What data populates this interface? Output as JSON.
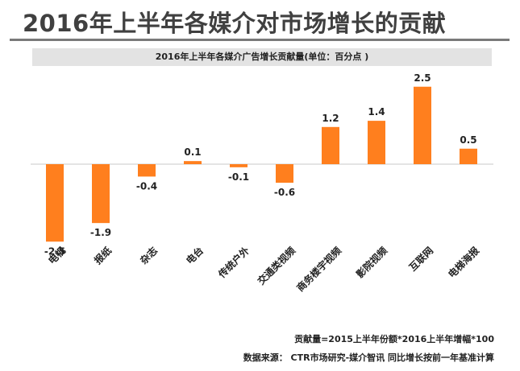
{
  "header": {
    "title": "2016年上半年各媒介对市场增长的贡献"
  },
  "chart_data": {
    "type": "bar",
    "title": "2016年上半年各媒介广告增长贡献量(单位：百分点 )",
    "categories": [
      "电视",
      "报纸",
      "杂志",
      "电台",
      "传统户外",
      "交通类视频",
      "商务楼宇视频",
      "影院视频",
      "互联网",
      "电梯海报"
    ],
    "values": [
      -2.5,
      -1.9,
      -0.4,
      0.1,
      -0.1,
      -0.6,
      1.2,
      1.4,
      2.5,
      0.5
    ],
    "value_labels": [
      "-2.5",
      "-1.9",
      "-0.4",
      "0.1",
      "-0.1",
      "-0.6",
      "1.2",
      "1.4",
      "2.5",
      "0.5"
    ],
    "bar_color": "#ff7f1e",
    "grid": false,
    "legend": "none"
  },
  "footer": {
    "formula": "贡献量=2015上半年份额*2016上半年增幅*100",
    "source": "数据来源： CTR市场研究-媒介智讯   同比增长按前一年基准计算"
  }
}
